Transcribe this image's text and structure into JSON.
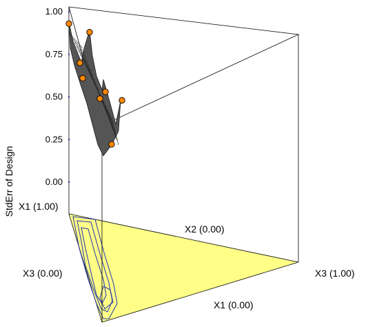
{
  "chart_data": {
    "type": "surface",
    "zlabel": "StdErr of Design",
    "z_ticks": [
      "0.00",
      "0.25",
      "0.50",
      "0.75",
      "1.00"
    ],
    "zlim": [
      0,
      1
    ],
    "vertex_labels": {
      "x1_top": "X1 (1.00)",
      "x2_zero": "X2 (0.00)",
      "x3_zero": "X3 (0.00)",
      "x3_one": "X3 (1.00)",
      "x1_zero": "X1 (0.00)"
    },
    "design_points_stderr": [
      0.93,
      0.88,
      0.7,
      0.61,
      0.53,
      0.49,
      0.48,
      0.25
    ],
    "colors": {
      "floor": "#ffff88",
      "contour": "#2233aa",
      "surface": "#555555",
      "point": "#ff8800"
    }
  }
}
